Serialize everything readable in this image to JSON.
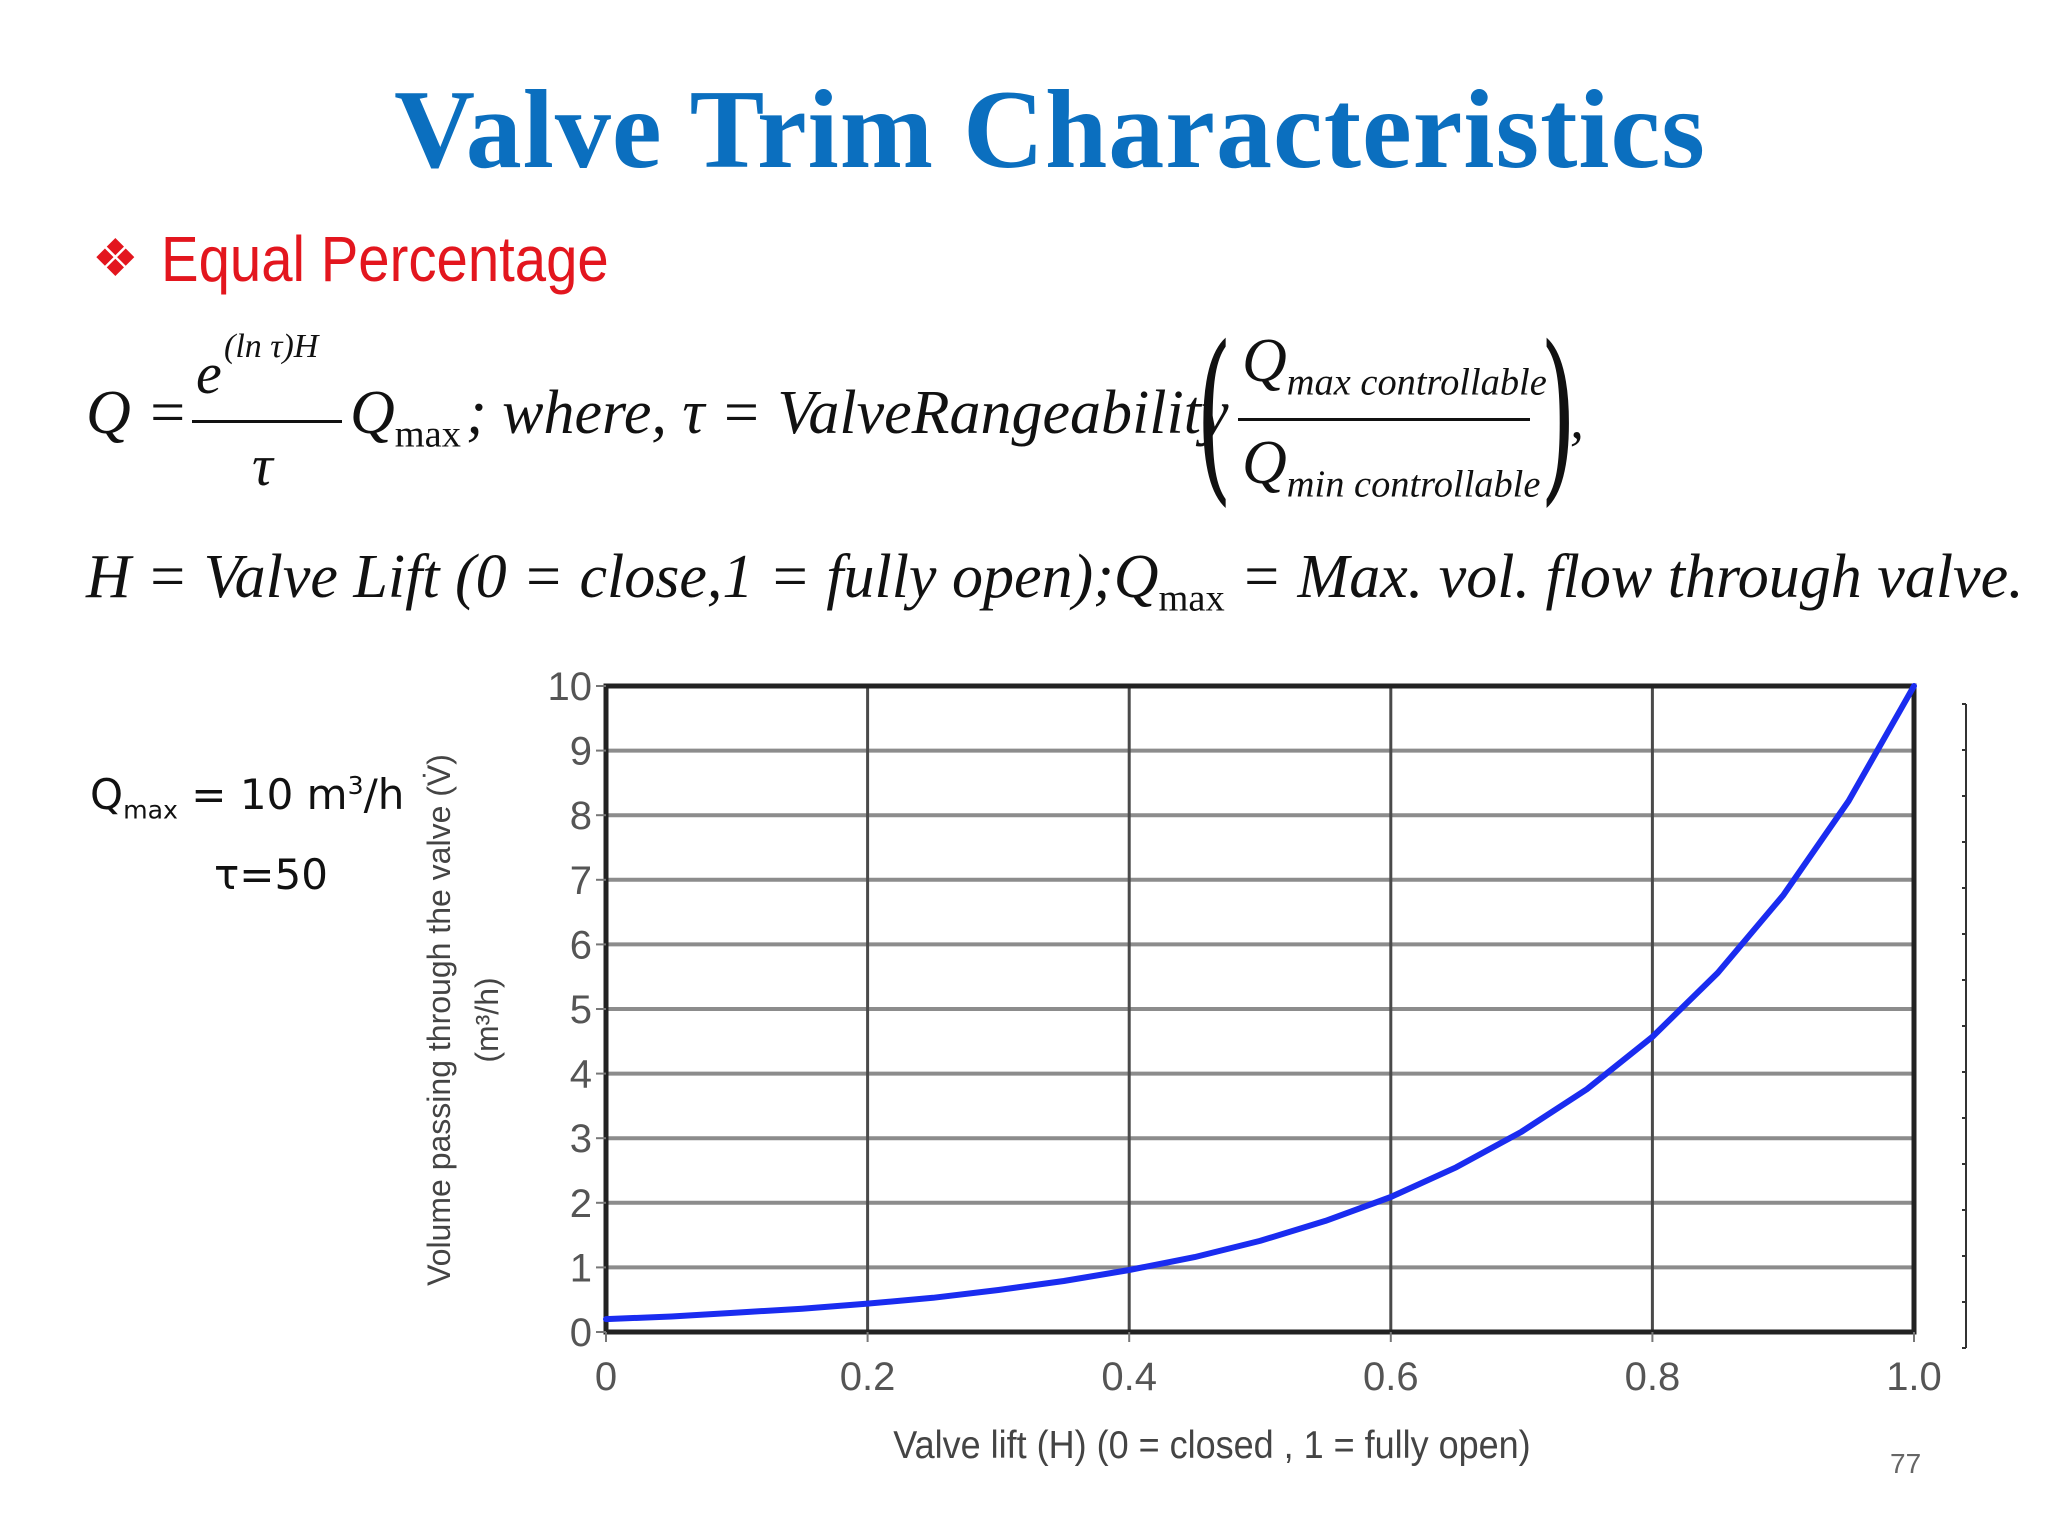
{
  "slide": {
    "title": "Valve Trim Characteristics",
    "bullet": "Equal Percentage",
    "bullet_icon": "four-diamond-bullet-icon",
    "page_number": "77"
  },
  "equation1": {
    "lhs": "Q =",
    "exp_base": "e",
    "exp_power": "(ln τ)H",
    "denominator": "τ",
    "qmax": "Q",
    "qmax_sub": "max",
    "where": "; where, τ = ValveRangeability",
    "num_q": "Q",
    "num_sub": "max controllable",
    "den_q": "Q",
    "den_sub": "min controllable",
    "trail": ","
  },
  "equation2": {
    "part1": "H = Valve Lift (0 = close,1 = fully open);",
    "q": "Q",
    "q_sub": "max",
    "part2": "= Max. vol. flow through valve."
  },
  "notes": {
    "qmax_label": "Q",
    "qmax_sub": "max",
    "qmax_value": " = 10 m",
    "qmax_sup": "3",
    "qmax_unit": "/h",
    "tau": "τ=50"
  },
  "chart_data": {
    "type": "line",
    "xlabel": "Valve lift (H) (0 = closed , 1 = fully open)",
    "ylabel_line1": "Volume passing through the valve (V̇)",
    "ylabel_line2": "(m³/h)",
    "xlim": [
      0,
      1.0
    ],
    "ylim": [
      0,
      10
    ],
    "x_ticks": [
      "0",
      "0.2",
      "0.4",
      "0.6",
      "0.8",
      "1.0"
    ],
    "y_ticks": [
      "0",
      "1",
      "2",
      "3",
      "4",
      "5",
      "6",
      "7",
      "8",
      "9",
      "10"
    ],
    "grid": true,
    "series": [
      {
        "color": "#1a2cf0",
        "x": [
          0,
          0.05,
          0.1,
          0.15,
          0.2,
          0.25,
          0.3,
          0.35,
          0.4,
          0.45,
          0.5,
          0.55,
          0.6,
          0.65,
          0.7,
          0.75,
          0.8,
          0.85,
          0.9,
          0.95,
          1.0
        ],
        "y": [
          0.2,
          0.24,
          0.3,
          0.36,
          0.44,
          0.53,
          0.65,
          0.79,
          0.96,
          1.16,
          1.41,
          1.72,
          2.09,
          2.55,
          3.1,
          3.76,
          4.57,
          5.56,
          6.76,
          8.22,
          10.0
        ]
      }
    ]
  }
}
